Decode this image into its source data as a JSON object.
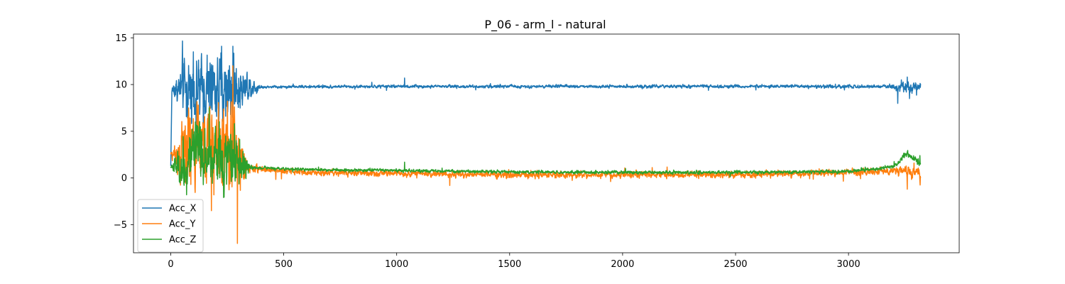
{
  "chart_data": {
    "type": "line",
    "title": "P_06 - arm_l - natural",
    "xlabel": "",
    "ylabel": "",
    "xlim": [
      -165,
      3490
    ],
    "ylim": [
      -8.0,
      15.4
    ],
    "x_ticks": [
      0,
      500,
      1000,
      1500,
      2000,
      2500,
      3000
    ],
    "y_ticks": [
      -5,
      0,
      5,
      10,
      15
    ],
    "y_tick_labels": [
      "−5",
      "0",
      "5",
      "10",
      "15"
    ],
    "n_samples": 3320,
    "grid": false,
    "legend_position": "lower-left",
    "series": [
      {
        "name": "Acc_X",
        "color": "#1f77b4",
        "envelope": [
          [
            0,
            1.3
          ],
          [
            5,
            9.4
          ],
          [
            60,
            9.6
          ],
          [
            80,
            9.5
          ],
          [
            120,
            9.4
          ],
          [
            200,
            9.5
          ],
          [
            260,
            9.6
          ],
          [
            330,
            9.8
          ],
          [
            400,
            9.75
          ],
          [
            1040,
            9.8
          ],
          [
            1500,
            9.8
          ],
          [
            2000,
            9.8
          ],
          [
            2500,
            9.8
          ],
          [
            3200,
            9.8
          ],
          [
            3260,
            9.7
          ],
          [
            3320,
            9.7
          ]
        ],
        "noise": [
          [
            0,
            0.0
          ],
          [
            60,
            2.8
          ],
          [
            280,
            3.0
          ],
          [
            340,
            1.2
          ],
          [
            400,
            0.12
          ],
          [
            3180,
            0.15
          ],
          [
            3240,
            0.6
          ],
          [
            3320,
            0.4
          ]
        ],
        "spikes": [
          [
            225,
            14.1
          ],
          [
            275,
            14.1
          ],
          [
            100,
            13.5
          ],
          [
            1035,
            10.7
          ],
          [
            3260,
            10.8
          ],
          [
            3270,
            8.5
          ]
        ]
      },
      {
        "name": "Acc_Y",
        "color": "#ff7f0e",
        "envelope": [
          [
            0,
            2.5
          ],
          [
            60,
            2.6
          ],
          [
            80,
            3.0
          ],
          [
            150,
            3.5
          ],
          [
            280,
            3.0
          ],
          [
            340,
            1.0
          ],
          [
            400,
            0.9
          ],
          [
            600,
            0.6
          ],
          [
            1000,
            0.5
          ],
          [
            1500,
            0.35
          ],
          [
            2000,
            0.35
          ],
          [
            2500,
            0.35
          ],
          [
            3000,
            0.6
          ],
          [
            3250,
            0.8
          ],
          [
            3320,
            0.3
          ]
        ],
        "noise": [
          [
            0,
            0.2
          ],
          [
            60,
            3.6
          ],
          [
            300,
            3.8
          ],
          [
            340,
            0.5
          ],
          [
            400,
            0.25
          ],
          [
            3180,
            0.3
          ],
          [
            3320,
            0.6
          ]
        ],
        "spikes": [
          [
            295,
            -7.0
          ],
          [
            180,
            -3.5
          ],
          [
            275,
            12.0
          ],
          [
            1235,
            -0.8
          ],
          [
            3260,
            -1.2
          ],
          [
            3290,
            1.6
          ]
        ]
      },
      {
        "name": "Acc_Z",
        "color": "#2ca02c",
        "envelope": [
          [
            0,
            1.2
          ],
          [
            60,
            1.3
          ],
          [
            120,
            2.5
          ],
          [
            200,
            2.0
          ],
          [
            300,
            2.0
          ],
          [
            340,
            1.1
          ],
          [
            400,
            1.1
          ],
          [
            600,
            0.9
          ],
          [
            1000,
            0.8
          ],
          [
            1500,
            0.65
          ],
          [
            2000,
            0.6
          ],
          [
            2500,
            0.6
          ],
          [
            3000,
            0.7
          ],
          [
            3200,
            1.2
          ],
          [
            3260,
            2.6
          ],
          [
            3320,
            1.6
          ]
        ],
        "noise": [
          [
            0,
            0.1
          ],
          [
            60,
            2.5
          ],
          [
            300,
            2.6
          ],
          [
            350,
            0.25
          ],
          [
            400,
            0.12
          ],
          [
            3150,
            0.15
          ],
          [
            3320,
            0.35
          ]
        ],
        "spikes": [
          [
            70,
            -1.8
          ],
          [
            170,
            7.5
          ],
          [
            1035,
            1.7
          ],
          [
            3260,
            2.8
          ]
        ]
      }
    ]
  }
}
